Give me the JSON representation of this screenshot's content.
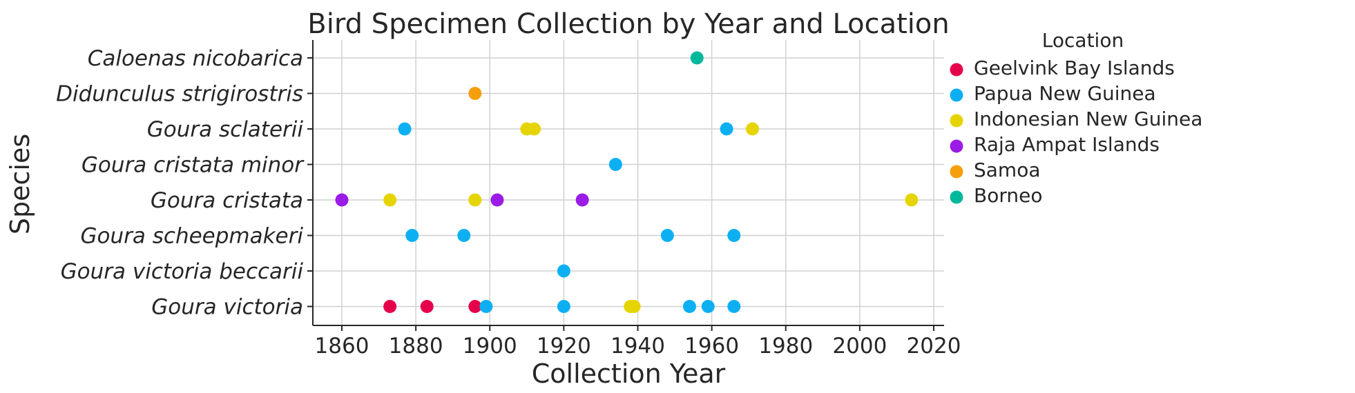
{
  "chart_data": {
    "type": "scatter",
    "title": "Bird Specimen Collection by Year and Location",
    "xlabel": "Collection Year",
    "ylabel": "Species",
    "xlim": [
      1852,
      2022
    ],
    "xticks": [
      1860,
      1880,
      1900,
      1920,
      1940,
      1960,
      1980,
      2000,
      2020
    ],
    "grid": true,
    "legend": {
      "title": "Location",
      "placement": "outside-right-top",
      "entries": [
        {
          "name": "Geelvink Bay Islands",
          "color": "#e6004c"
        },
        {
          "name": "Papua New Guinea",
          "color": "#0cb0f2"
        },
        {
          "name": "Indonesian New Guinea",
          "color": "#e6d400"
        },
        {
          "name": "Raja Ampat Islands",
          "color": "#9b1ce6"
        },
        {
          "name": "Samoa",
          "color": "#f59f0c"
        },
        {
          "name": "Borneo",
          "color": "#00b89c"
        }
      ]
    },
    "categories": [
      "Caloenas nicobarica",
      "Didunculus strigirostris",
      "Goura sclaterii",
      "Goura cristata minor",
      "Goura cristata",
      "Goura scheepmakeri",
      "Goura victoria beccarii",
      "Goura victoria"
    ],
    "series": [
      {
        "name": "Geelvink Bay Islands",
        "points": [
          {
            "species": "Goura victoria",
            "year": 1873
          },
          {
            "species": "Goura victoria",
            "year": 1883
          },
          {
            "species": "Goura victoria",
            "year": 1896
          }
        ]
      },
      {
        "name": "Papua New Guinea",
        "points": [
          {
            "species": "Goura victoria",
            "year": 1899
          },
          {
            "species": "Goura victoria",
            "year": 1920
          },
          {
            "species": "Goura victoria",
            "year": 1954
          },
          {
            "species": "Goura victoria",
            "year": 1959
          },
          {
            "species": "Goura victoria",
            "year": 1966
          },
          {
            "species": "Goura victoria beccarii",
            "year": 1920
          },
          {
            "species": "Goura scheepmakeri",
            "year": 1879
          },
          {
            "species": "Goura scheepmakeri",
            "year": 1893
          },
          {
            "species": "Goura scheepmakeri",
            "year": 1948
          },
          {
            "species": "Goura scheepmakeri",
            "year": 1966
          },
          {
            "species": "Goura cristata minor",
            "year": 1934
          },
          {
            "species": "Goura sclaterii",
            "year": 1877
          },
          {
            "species": "Goura sclaterii",
            "year": 1964
          }
        ]
      },
      {
        "name": "Indonesian New Guinea",
        "points": [
          {
            "species": "Goura victoria",
            "year": 1938
          },
          {
            "species": "Goura victoria",
            "year": 1939
          },
          {
            "species": "Goura cristata",
            "year": 1873
          },
          {
            "species": "Goura cristata",
            "year": 1896
          },
          {
            "species": "Goura cristata",
            "year": 2014
          },
          {
            "species": "Goura sclaterii",
            "year": 1910
          },
          {
            "species": "Goura sclaterii",
            "year": 1912
          },
          {
            "species": "Goura sclaterii",
            "year": 1971
          }
        ]
      },
      {
        "name": "Raja Ampat Islands",
        "points": [
          {
            "species": "Goura cristata",
            "year": 1860
          },
          {
            "species": "Goura cristata",
            "year": 1902
          },
          {
            "species": "Goura cristata",
            "year": 1925
          }
        ]
      },
      {
        "name": "Samoa",
        "points": [
          {
            "species": "Didunculus strigirostris",
            "year": 1896
          }
        ]
      },
      {
        "name": "Borneo",
        "points": [
          {
            "species": "Caloenas nicobarica",
            "year": 1956
          }
        ]
      }
    ]
  }
}
